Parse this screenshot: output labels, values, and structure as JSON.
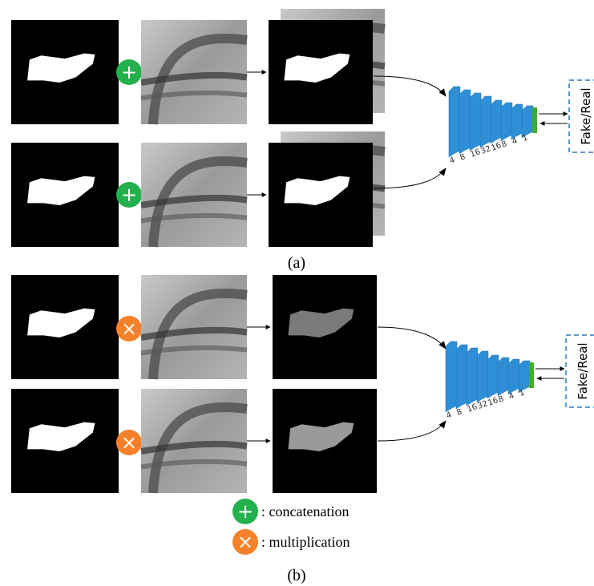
{
  "panels": [
    {
      "label": "(a)",
      "operator": "+",
      "discriminator": {
        "channels": [
          4,
          8,
          16,
          32,
          16,
          8,
          4,
          1
        ],
        "output": "Fake/Real"
      }
    },
    {
      "label": "(b)",
      "operator": "×",
      "discriminator": {
        "channels": [
          4,
          8,
          16,
          32,
          16,
          8,
          4,
          1
        ],
        "output": "Fake/Real"
      }
    }
  ],
  "legend": [
    {
      "symbol": "+",
      "text": ": concatenation"
    },
    {
      "symbol": "×",
      "text": ": multiplication"
    }
  ]
}
